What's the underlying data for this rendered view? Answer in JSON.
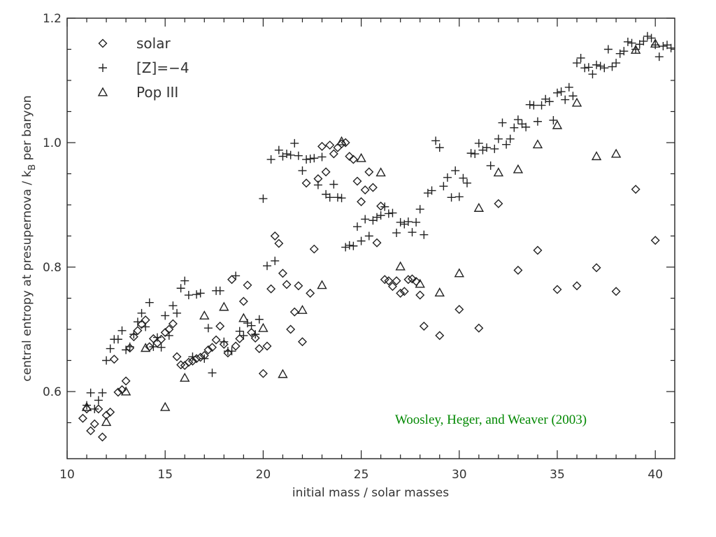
{
  "chart_data": {
    "type": "scatter",
    "xlabel": "initial mass / solar masses",
    "ylabel_prefix": "central entropy at presupernova / k",
    "ylabel_subscript": "B",
    "ylabel_suffix": " per baryon",
    "xlim": [
      10,
      41
    ],
    "ylim": [
      0.49,
      1.2
    ],
    "x_ticks": [
      10,
      15,
      20,
      25,
      30,
      35,
      40
    ],
    "x_tick_labels": [
      "10",
      "15",
      "20",
      "25",
      "30",
      "35",
      "40"
    ],
    "x_minor_ticks": [
      11,
      12,
      13,
      14,
      16,
      17,
      18,
      19,
      21,
      22,
      23,
      24,
      26,
      27,
      28,
      29,
      31,
      32,
      33,
      34,
      36,
      37,
      38,
      39
    ],
    "y_ticks": [
      0.6,
      0.8,
      1.0,
      1.2
    ],
    "y_tick_labels": [
      "0.6",
      "0.8",
      "1.0",
      "1.2"
    ],
    "y_minor_ticks": [
      0.55,
      0.65,
      0.7,
      0.75,
      0.85,
      0.9,
      0.95,
      1.05,
      1.1,
      1.15
    ],
    "grid": false,
    "legend_position": "top-left",
    "annotation": {
      "text": "Woosley, Heger, and Weaver (2003)",
      "color": "#008800"
    },
    "series": [
      {
        "name": "solar",
        "marker": "diamond",
        "points": [
          [
            10.8,
            0.557
          ],
          [
            11.0,
            0.572
          ],
          [
            11.2,
            0.537
          ],
          [
            11.4,
            0.548
          ],
          [
            11.6,
            0.572
          ],
          [
            11.8,
            0.527
          ],
          [
            12.0,
            0.562
          ],
          [
            12.2,
            0.567
          ],
          [
            12.4,
            0.652
          ],
          [
            12.6,
            0.599
          ],
          [
            12.8,
            0.603
          ],
          [
            13.0,
            0.617
          ],
          [
            13.2,
            0.67
          ],
          [
            13.4,
            0.688
          ],
          [
            13.6,
            0.698
          ],
          [
            13.8,
            0.708
          ],
          [
            14.0,
            0.715
          ],
          [
            14.2,
            0.672
          ],
          [
            14.4,
            0.685
          ],
          [
            14.6,
            0.678
          ],
          [
            14.8,
            0.684
          ],
          [
            15.0,
            0.695
          ],
          [
            15.2,
            0.7
          ],
          [
            15.4,
            0.709
          ],
          [
            15.6,
            0.656
          ],
          [
            15.8,
            0.643
          ],
          [
            16.0,
            0.642
          ],
          [
            16.2,
            0.647
          ],
          [
            16.4,
            0.649
          ],
          [
            16.6,
            0.653
          ],
          [
            16.8,
            0.655
          ],
          [
            17.0,
            0.658
          ],
          [
            17.2,
            0.667
          ],
          [
            17.4,
            0.671
          ],
          [
            17.6,
            0.683
          ],
          [
            17.8,
            0.705
          ],
          [
            18.0,
            0.676
          ],
          [
            18.2,
            0.662
          ],
          [
            18.4,
            0.78
          ],
          [
            18.6,
            0.673
          ],
          [
            18.8,
            0.685
          ],
          [
            19.0,
            0.745
          ],
          [
            19.2,
            0.771
          ],
          [
            19.4,
            0.695
          ],
          [
            19.6,
            0.686
          ],
          [
            19.8,
            0.669
          ],
          [
            20.0,
            0.629
          ],
          [
            20.2,
            0.673
          ],
          [
            20.4,
            0.765
          ],
          [
            20.6,
            0.85
          ],
          [
            20.8,
            0.838
          ],
          [
            21.0,
            0.79
          ],
          [
            21.2,
            0.772
          ],
          [
            21.4,
            0.7
          ],
          [
            21.6,
            0.728
          ],
          [
            21.8,
            0.77
          ],
          [
            22.0,
            0.68
          ],
          [
            22.2,
            0.935
          ],
          [
            22.4,
            0.758
          ],
          [
            22.6,
            0.829
          ],
          [
            22.8,
            0.942
          ],
          [
            23.0,
            0.994
          ],
          [
            23.2,
            0.953
          ],
          [
            23.4,
            0.996
          ],
          [
            23.6,
            0.982
          ],
          [
            23.8,
            0.992
          ],
          [
            24.0,
            0.998
          ],
          [
            24.2,
            1.0
          ],
          [
            24.4,
            0.978
          ],
          [
            24.6,
            0.973
          ],
          [
            24.8,
            0.938
          ],
          [
            25.0,
            0.905
          ],
          [
            25.2,
            0.924
          ],
          [
            25.4,
            0.953
          ],
          [
            25.6,
            0.928
          ],
          [
            25.8,
            0.839
          ],
          [
            26.0,
            0.898
          ],
          [
            26.2,
            0.78
          ],
          [
            26.4,
            0.778
          ],
          [
            26.6,
            0.769
          ],
          [
            26.8,
            0.778
          ],
          [
            27.0,
            0.758
          ],
          [
            27.2,
            0.761
          ],
          [
            27.4,
            0.78
          ],
          [
            27.6,
            0.781
          ],
          [
            27.8,
            0.777
          ],
          [
            28.0,
            0.755
          ],
          [
            28.2,
            0.705
          ],
          [
            29.0,
            0.69
          ],
          [
            30.0,
            0.732
          ],
          [
            31.0,
            0.702
          ],
          [
            32.0,
            0.902
          ],
          [
            33.0,
            0.795
          ],
          [
            34.0,
            0.827
          ],
          [
            35.0,
            0.764
          ],
          [
            36.0,
            0.77
          ],
          [
            37.0,
            0.799
          ],
          [
            38.0,
            0.761
          ],
          [
            39.0,
            0.925
          ],
          [
            40.0,
            0.843
          ]
        ]
      },
      {
        "name": "[Z]=−4",
        "marker": "plus",
        "points": [
          [
            11.0,
            0.578
          ],
          [
            11.2,
            0.598
          ],
          [
            11.4,
            0.572
          ],
          [
            11.6,
            0.586
          ],
          [
            11.8,
            0.598
          ],
          [
            12.0,
            0.65
          ],
          [
            12.2,
            0.669
          ],
          [
            12.4,
            0.684
          ],
          [
            12.6,
            0.684
          ],
          [
            12.8,
            0.698
          ],
          [
            13.0,
            0.667
          ],
          [
            13.2,
            0.672
          ],
          [
            13.4,
            0.692
          ],
          [
            13.6,
            0.712
          ],
          [
            13.8,
            0.726
          ],
          [
            14.0,
            0.704
          ],
          [
            14.2,
            0.743
          ],
          [
            14.4,
            0.672
          ],
          [
            14.6,
            0.687
          ],
          [
            14.8,
            0.671
          ],
          [
            15.0,
            0.722
          ],
          [
            15.2,
            0.69
          ],
          [
            15.4,
            0.738
          ],
          [
            15.6,
            0.726
          ],
          [
            15.8,
            0.766
          ],
          [
            16.0,
            0.778
          ],
          [
            16.2,
            0.755
          ],
          [
            16.4,
            0.656
          ],
          [
            16.6,
            0.756
          ],
          [
            16.8,
            0.758
          ],
          [
            17.0,
            0.653
          ],
          [
            17.2,
            0.702
          ],
          [
            17.4,
            0.63
          ],
          [
            17.6,
            0.762
          ],
          [
            17.8,
            0.762
          ],
          [
            18.0,
            0.68
          ],
          [
            18.2,
            0.665
          ],
          [
            18.4,
            0.665
          ],
          [
            18.6,
            0.786
          ],
          [
            18.8,
            0.697
          ],
          [
            19.0,
            0.69
          ],
          [
            19.2,
            0.71
          ],
          [
            19.4,
            0.706
          ],
          [
            19.6,
            0.692
          ],
          [
            19.8,
            0.716
          ],
          [
            20.0,
            0.91
          ],
          [
            20.2,
            0.802
          ],
          [
            20.4,
            0.973
          ],
          [
            20.6,
            0.81
          ],
          [
            20.8,
            0.988
          ],
          [
            21.0,
            0.978
          ],
          [
            21.2,
            0.982
          ],
          [
            21.4,
            0.98
          ],
          [
            21.6,
            0.999
          ],
          [
            21.8,
            0.979
          ],
          [
            22.0,
            0.955
          ],
          [
            22.2,
            0.973
          ],
          [
            22.4,
            0.974
          ],
          [
            22.6,
            0.975
          ],
          [
            22.8,
            0.932
          ],
          [
            23.0,
            0.977
          ],
          [
            23.2,
            0.917
          ],
          [
            23.4,
            0.912
          ],
          [
            23.6,
            0.933
          ],
          [
            23.8,
            0.912
          ],
          [
            24.0,
            0.911
          ],
          [
            24.2,
            0.832
          ],
          [
            24.4,
            0.835
          ],
          [
            24.6,
            0.834
          ],
          [
            24.8,
            0.865
          ],
          [
            25.0,
            0.842
          ],
          [
            25.2,
            0.877
          ],
          [
            25.4,
            0.85
          ],
          [
            25.6,
            0.875
          ],
          [
            25.8,
            0.88
          ],
          [
            26.0,
            0.883
          ],
          [
            26.2,
            0.897
          ],
          [
            26.4,
            0.886
          ],
          [
            26.6,
            0.887
          ],
          [
            26.8,
            0.855
          ],
          [
            27.0,
            0.872
          ],
          [
            27.2,
            0.869
          ],
          [
            27.4,
            0.873
          ],
          [
            27.6,
            0.856
          ],
          [
            27.8,
            0.872
          ],
          [
            28.0,
            0.893
          ],
          [
            28.2,
            0.852
          ],
          [
            28.4,
            0.919
          ],
          [
            28.6,
            0.923
          ],
          [
            28.8,
            1.003
          ],
          [
            29.0,
            0.992
          ],
          [
            29.2,
            0.93
          ],
          [
            29.4,
            0.944
          ],
          [
            29.6,
            0.912
          ],
          [
            29.8,
            0.955
          ],
          [
            30.0,
            0.913
          ],
          [
            30.2,
            0.943
          ],
          [
            30.4,
            0.935
          ],
          [
            30.6,
            0.983
          ],
          [
            30.8,
            0.982
          ],
          [
            31.0,
            0.999
          ],
          [
            31.2,
            0.988
          ],
          [
            31.4,
            0.992
          ],
          [
            31.6,
            0.963
          ],
          [
            31.8,
            0.99
          ],
          [
            32.0,
            1.006
          ],
          [
            32.2,
            1.032
          ],
          [
            32.4,
            0.997
          ],
          [
            32.6,
            1.006
          ],
          [
            32.8,
            1.024
          ],
          [
            33.0,
            1.037
          ],
          [
            33.2,
            1.03
          ],
          [
            33.4,
            1.025
          ],
          [
            33.6,
            1.061
          ],
          [
            33.8,
            1.06
          ],
          [
            34.0,
            1.034
          ],
          [
            34.2,
            1.06
          ],
          [
            34.4,
            1.07
          ],
          [
            34.6,
            1.066
          ],
          [
            34.8,
            1.036
          ],
          [
            35.0,
            1.08
          ],
          [
            35.2,
            1.082
          ],
          [
            35.4,
            1.069
          ],
          [
            35.6,
            1.089
          ],
          [
            35.8,
            1.075
          ],
          [
            36.0,
            1.128
          ],
          [
            36.2,
            1.136
          ],
          [
            36.4,
            1.12
          ],
          [
            36.6,
            1.121
          ],
          [
            36.8,
            1.11
          ],
          [
            37.0,
            1.125
          ],
          [
            37.2,
            1.123
          ],
          [
            37.4,
            1.12
          ],
          [
            37.6,
            1.15
          ],
          [
            37.8,
            1.122
          ],
          [
            38.0,
            1.128
          ],
          [
            38.2,
            1.143
          ],
          [
            38.4,
            1.147
          ],
          [
            38.6,
            1.162
          ],
          [
            38.8,
            1.16
          ],
          [
            39.0,
            1.15
          ],
          [
            39.2,
            1.158
          ],
          [
            39.4,
            1.163
          ],
          [
            39.6,
            1.171
          ],
          [
            39.8,
            1.168
          ],
          [
            40.0,
            1.157
          ],
          [
            40.2,
            1.138
          ],
          [
            40.4,
            1.155
          ],
          [
            40.6,
            1.157
          ],
          [
            40.8,
            1.152
          ]
        ]
      },
      {
        "name": "Pop III",
        "marker": "triangle",
        "points": [
          [
            11.0,
            0.575
          ],
          [
            12.0,
            0.551
          ],
          [
            13.0,
            0.6
          ],
          [
            14.0,
            0.67
          ],
          [
            15.0,
            0.575
          ],
          [
            16.0,
            0.622
          ],
          [
            17.0,
            0.722
          ],
          [
            18.0,
            0.736
          ],
          [
            19.0,
            0.718
          ],
          [
            20.0,
            0.702
          ],
          [
            21.0,
            0.628
          ],
          [
            22.0,
            0.731
          ],
          [
            23.0,
            0.771
          ],
          [
            24.0,
            1.002
          ],
          [
            25.0,
            0.975
          ],
          [
            26.0,
            0.952
          ],
          [
            27.0,
            0.801
          ],
          [
            28.0,
            0.773
          ],
          [
            29.0,
            0.759
          ],
          [
            30.0,
            0.79
          ],
          [
            31.0,
            0.895
          ],
          [
            32.0,
            0.952
          ],
          [
            33.0,
            0.957
          ],
          [
            34.0,
            0.997
          ],
          [
            35.0,
            1.028
          ],
          [
            36.0,
            1.064
          ],
          [
            37.0,
            0.978
          ],
          [
            38.0,
            0.982
          ],
          [
            39.0,
            1.149
          ],
          [
            40.0,
            1.159
          ]
        ]
      }
    ]
  }
}
